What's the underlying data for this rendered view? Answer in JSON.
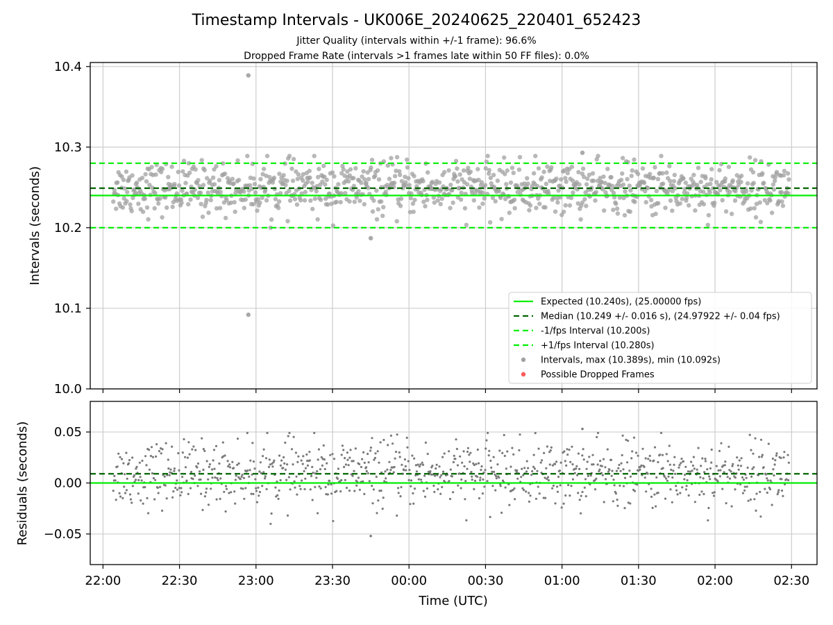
{
  "chart_data": [
    {
      "id": "intervals",
      "type": "scatter",
      "title": "Timestamp Intervals - UK006E_20240625_220401_652423",
      "subtitles": [
        "Jitter Quality (intervals within +/-1 frame): 96.6%",
        "Dropped Frame Rate (intervals >1 frames late within 50 FF files): 0.0%"
      ],
      "xlabel": "",
      "ylabel": "Intervals (seconds)",
      "ylim": [
        10.0,
        10.405
      ],
      "yticks": [
        10.0,
        10.1,
        10.2,
        10.3,
        10.4
      ],
      "ytick_labels": [
        "10.0",
        "10.1",
        "10.2",
        "10.3",
        "10.4"
      ],
      "grid": true,
      "legend_position": "lower-right",
      "reference_lines": [
        {
          "label": "Expected (10.240s), (25.00000 fps)",
          "y": 10.24,
          "style": "solid",
          "color": "#00ee00"
        },
        {
          "label": "Median (10.249 +/- 0.016 s), (24.97922 +/- 0.04 fps)",
          "y": 10.249,
          "style": "dashed",
          "color": "#006400"
        },
        {
          "label": "-1/fps Interval (10.200s)",
          "y": 10.2,
          "style": "dashed",
          "color": "#00ee00"
        },
        {
          "label": "+1/fps Interval (10.280s)",
          "y": 10.28,
          "style": "dashed",
          "color": "#00ee00"
        }
      ],
      "scatter_legend": [
        {
          "label": "Intervals, max (10.389s), min (10.092s)",
          "color": "#a0a0a0"
        },
        {
          "label": "Possible Dropped Frames",
          "color": "#ff5a5a"
        }
      ],
      "summary": {
        "median": 10.249,
        "spread": 0.016,
        "max": 10.389,
        "min": 10.092
      },
      "outliers": [
        {
          "x": "22:57",
          "y": 10.389
        },
        {
          "x": "22:57",
          "y": 10.092
        },
        {
          "x": "23:45",
          "y": 10.187
        },
        {
          "x": "01:08",
          "y": 10.293
        }
      ]
    },
    {
      "id": "residuals",
      "type": "scatter",
      "xlabel": "Time (UTC)",
      "ylabel": "Residuals (seconds)",
      "ylim": [
        -0.08,
        0.08
      ],
      "yticks": [
        -0.05,
        0.0,
        0.05
      ],
      "ytick_labels": [
        "−0.05",
        "0.00",
        "0.05"
      ],
      "grid": true,
      "reference_lines": [
        {
          "y": 0.0,
          "style": "solid",
          "color": "#00ee00"
        },
        {
          "y": 0.009,
          "style": "dashed",
          "color": "#006400"
        }
      ],
      "outliers": [
        {
          "x": "23:45",
          "y": -0.052
        },
        {
          "x": "01:08",
          "y": 0.053
        }
      ]
    }
  ],
  "x_axis": {
    "range": [
      "21:55",
      "02:40"
    ],
    "data_range": [
      "22:04",
      "02:29"
    ],
    "ticks": [
      "22:00",
      "22:30",
      "23:00",
      "23:30",
      "00:00",
      "00:30",
      "01:00",
      "01:30",
      "02:00",
      "02:30"
    ]
  },
  "colors": {
    "expected": "#00ee00",
    "median": "#006400",
    "interval_points": "#a0a0a0",
    "residual_points": "#7a7a7a",
    "dropped": "#ff5a5a",
    "grid": "#cccccc"
  }
}
